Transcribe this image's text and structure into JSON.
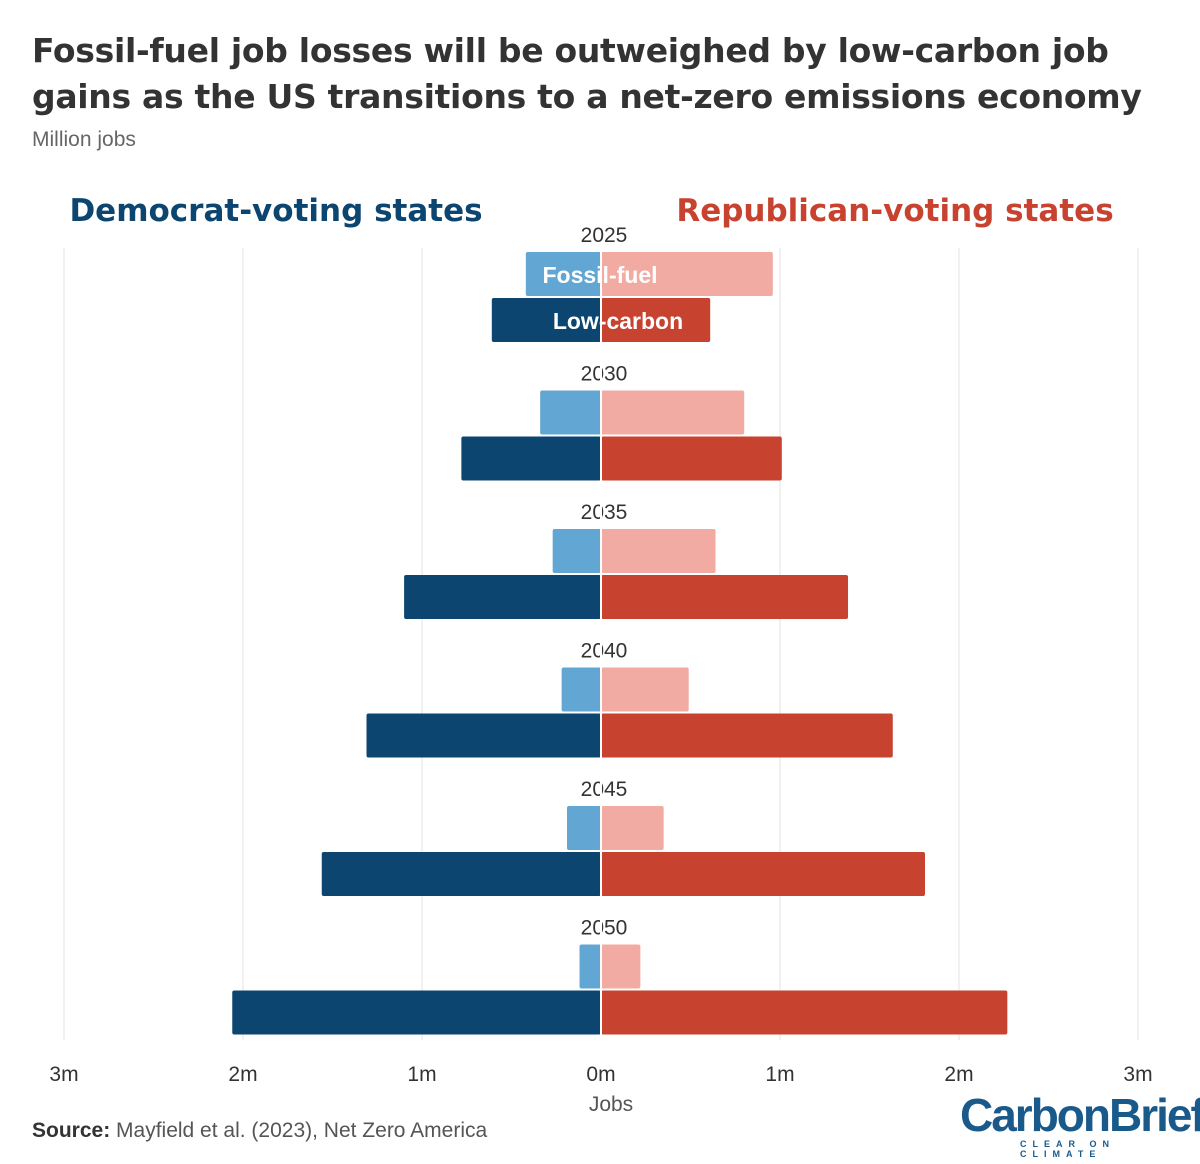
{
  "title": "Fossil-fuel job losses will be outweighed by low-carbon job gains as the US transitions to a net-zero emissions economy",
  "subtitle": "Million jobs",
  "source_label": "Source:",
  "source_text": "Mayfield et al. (2023), Net Zero America",
  "logo": {
    "wordmark": "CarbonBrief",
    "tagline": "CLEAR ON CLIMATE"
  },
  "colors": {
    "dem_fossil": "#62a7d4",
    "dem_lowcarbon": "#0b4570",
    "rep_fossil": "#f2aba3",
    "rep_lowcarbon": "#c7422f",
    "dem_heading": "#0b4570",
    "rep_heading": "#c7422f",
    "grid": "#e3e3e3",
    "text": "#333333"
  },
  "chart_data": {
    "type": "bar",
    "orientation": "horizontal-diverging",
    "left_heading": "Democrat-voting states",
    "right_heading": "Republican-voting states",
    "xlabel": "Jobs",
    "xlim": [
      -3,
      3
    ],
    "xticks": [
      -3,
      -2,
      -1,
      0,
      1,
      2,
      3
    ],
    "xtick_labels": [
      "3m",
      "2m",
      "1m",
      "0m",
      "1m",
      "2m",
      "3m"
    ],
    "grid": true,
    "bar_labels": [
      "Fossil-fuel",
      "Low-carbon"
    ],
    "categories": [
      "2025",
      "2030",
      "2035",
      "2040",
      "2045",
      "2050"
    ],
    "series": [
      {
        "name": "Fossil-fuel",
        "side": "Democrat-voting states",
        "values": [
          0.42,
          0.34,
          0.27,
          0.22,
          0.19,
          0.12
        ]
      },
      {
        "name": "Low-carbon",
        "side": "Democrat-voting states",
        "values": [
          0.61,
          0.78,
          1.1,
          1.31,
          1.56,
          2.06
        ]
      },
      {
        "name": "Fossil-fuel",
        "side": "Republican-voting states",
        "values": [
          0.96,
          0.8,
          0.64,
          0.49,
          0.35,
          0.22
        ]
      },
      {
        "name": "Low-carbon",
        "side": "Republican-voting states",
        "values": [
          0.61,
          1.01,
          1.38,
          1.63,
          1.81,
          2.27
        ]
      }
    ]
  }
}
